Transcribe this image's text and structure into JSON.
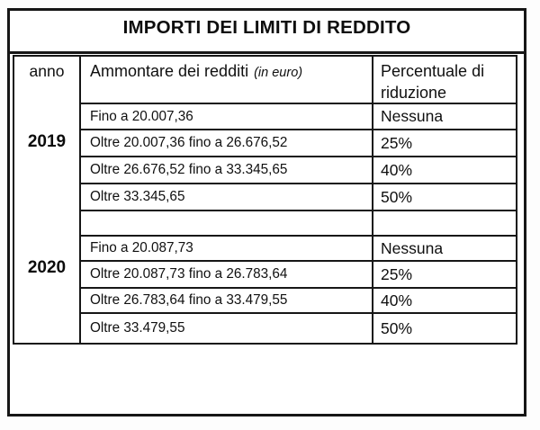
{
  "title": "IMPORTI DEI LIMITI DI REDDITO",
  "table": {
    "header": {
      "year": "anno",
      "amount": "Ammontare dei redditi",
      "amount_unit": "(in euro)",
      "reduction": "Percentuale di riduzione"
    },
    "sections": [
      {
        "year": "2019",
        "rows": [
          {
            "amount": "Fino a 20.007,36",
            "reduction": "Nessuna"
          },
          {
            "amount": "Oltre 20.007,36 fino a 26.676,52",
            "reduction": "25%"
          },
          {
            "amount": "Oltre 26.676,52 fino a 33.345,65",
            "reduction": "40%"
          },
          {
            "amount": "Oltre 33.345,65",
            "reduction": "50%"
          }
        ]
      },
      {
        "year": "2020",
        "rows": [
          {
            "amount": "Fino a 20.087,73",
            "reduction": "Nessuna"
          },
          {
            "amount": "Oltre 20.087,73 fino a 26.783,64",
            "reduction": "25%"
          },
          {
            "amount": "Oltre 26.783,64 fino a 33.479,55",
            "reduction": "40%"
          },
          {
            "amount": "Oltre 33.479,55",
            "reduction": "50%"
          }
        ]
      }
    ]
  },
  "colors": {
    "border": "#161616",
    "text": "#101010",
    "background": "#ffffff"
  }
}
